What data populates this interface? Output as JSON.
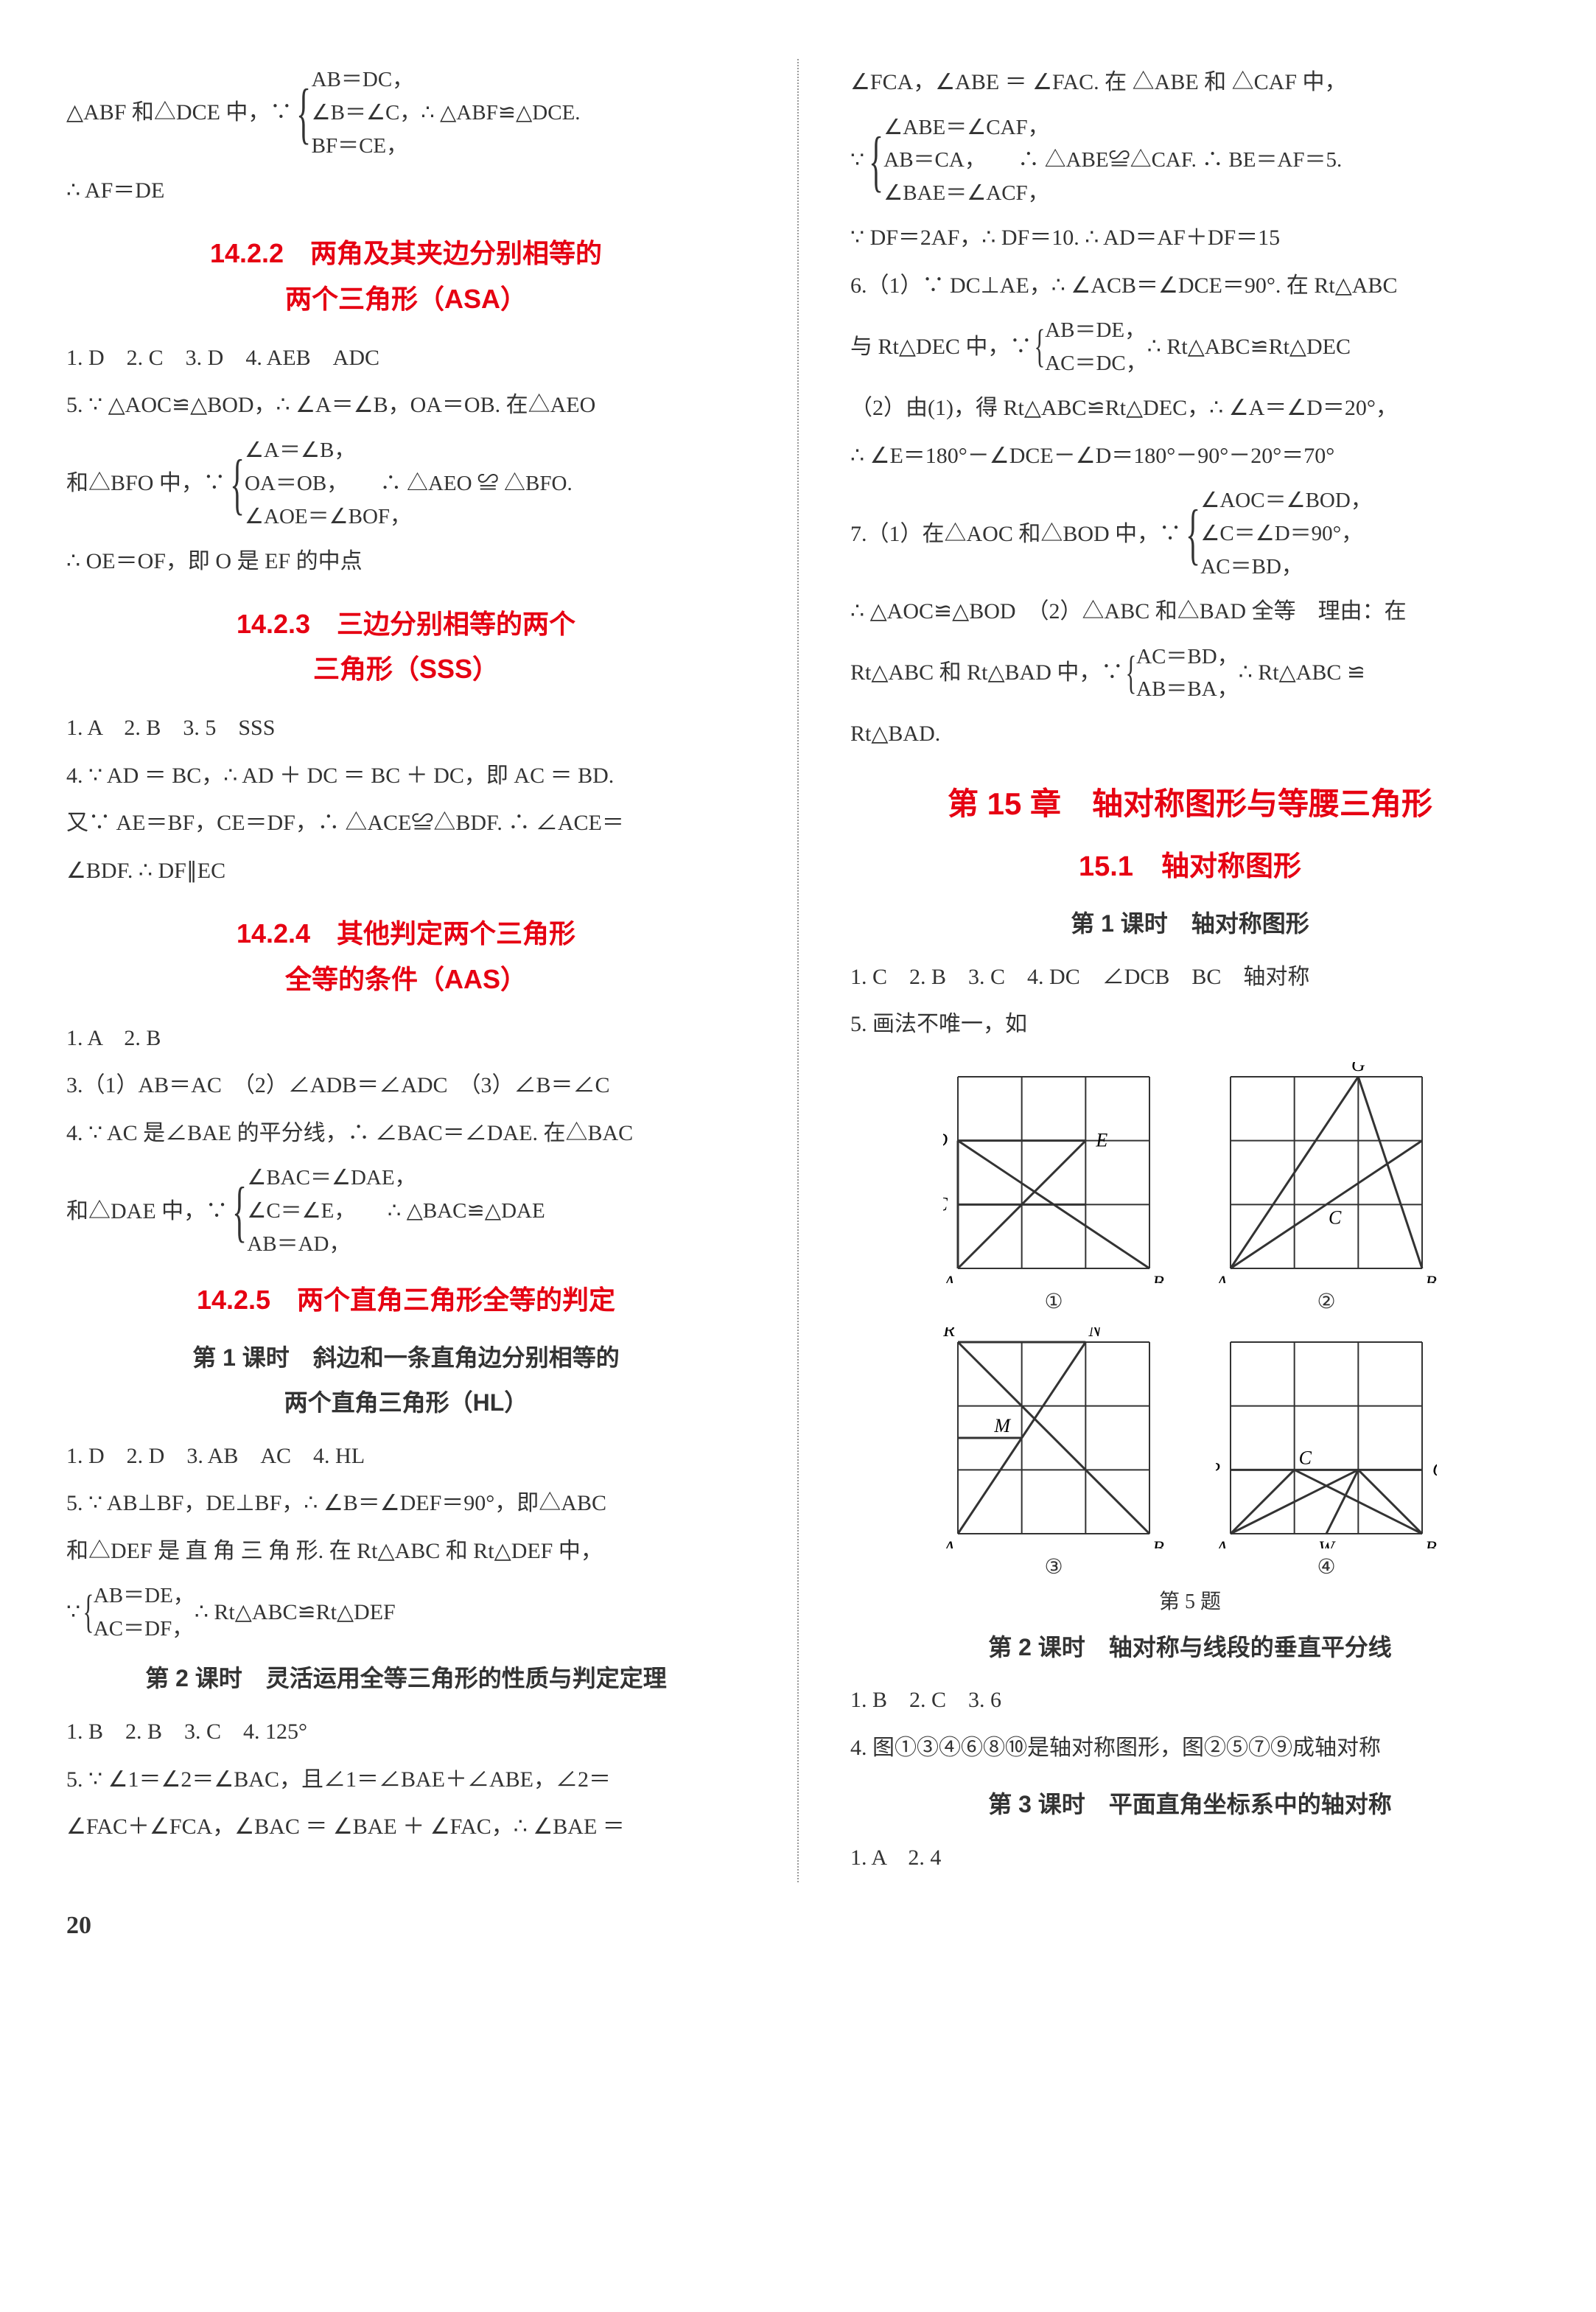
{
  "left": {
    "l1a": "△ABF 和△DCE 中，∵ ",
    "l1_brace": [
      "AB＝DC，",
      "∠B＝∠C，∴ △ABF≌△DCE.",
      "BF＝CE，"
    ],
    "l2": "∴ AF＝DE",
    "sec1422a": "14.2.2　两角及其夹边分别相等的",
    "sec1422b": "两个三角形（ASA）",
    "l3": "1. D　2. C　3. D　4. AEB　ADC",
    "l4": "5. ∵ △AOC≌△BOD，∴ ∠A＝∠B，OA＝OB. 在△AEO",
    "l5a": "和△BFO 中，∵ ",
    "l5_brace": [
      "∠A＝∠B，",
      "OA＝OB，　　∴ △AEO ≌ △BFO.",
      "∠AOE＝∠BOF，"
    ],
    "l6": "∴ OE＝OF，即 O 是 EF 的中点",
    "sec1423a": "14.2.3　三边分别相等的两个",
    "sec1423b": "三角形（SSS）",
    "l7": "1. A　2. B　3. 5　SSS",
    "l8": "4. ∵ AD ＝ BC，∴ AD ＋ DC ＝ BC ＋ DC，即 AC ＝ BD.",
    "l9": "又∵ AE＝BF，CE＝DF，∴ △ACE≌△BDF. ∴ ∠ACE＝",
    "l10": "∠BDF. ∴ DF∥EC",
    "sec1424a": "14.2.4　其他判定两个三角形",
    "sec1424b": "全等的条件（AAS）",
    "l11": "1. A　2. B",
    "l12": "3.（1）AB＝AC　（2）∠ADB＝∠ADC　（3）∠B＝∠C",
    "l13": "4. ∵ AC 是∠BAE 的平分线，∴ ∠BAC＝∠DAE. 在△BAC",
    "l14a": "和△DAE 中，∵ ",
    "l14_brace": [
      "∠BAC＝∠DAE，",
      "∠C＝∠E，　　∴ △BAC≌△DAE",
      "AB＝AD，"
    ],
    "sec1425": "14.2.5　两个直角三角形全等的判定",
    "lesson1a": "第 1 课时　斜边和一条直角边分别相等的",
    "lesson1b": "两个直角三角形（HL）",
    "l15": "1. D　2. D　3. AB　AC　4. HL",
    "l16": "5. ∵ AB⊥BF，DE⊥BF，∴ ∠B＝∠DEF＝90°，即△ABC",
    "l17": "和△DEF 是 直 角 三 角 形. 在 Rt△ABC 和 Rt△DEF 中，",
    "l18a": "∵ ",
    "l18_brace": [
      "AB＝DE，",
      "AC＝DF，"
    ],
    "l18b": "∴ Rt△ABC≌Rt△DEF",
    "lesson2": "第 2 课时　灵活运用全等三角形的性质与判定定理",
    "l19": "1. B　2. B　3. C　4. 125°",
    "l20": "5. ∵ ∠1＝∠2＝∠BAC，且∠1＝∠BAE＋∠ABE，∠2＝",
    "l21": "∠FAC＋∠FCA，∠BAC ＝ ∠BAE ＋ ∠FAC，∴ ∠BAE ＝"
  },
  "right": {
    "r1": "∠FCA，∠ABE ＝ ∠FAC. 在 △ABE 和 △CAF 中，",
    "r2a": "∵ ",
    "r2_brace": [
      "∠ABE＝∠CAF，",
      "AB＝CA，　　∴ △ABE≌△CAF. ∴ BE＝AF＝5.",
      "∠BAE＝∠ACF，"
    ],
    "r3": "∵ DF＝2AF，∴ DF＝10. ∴ AD＝AF＋DF＝15",
    "r4": "6.（1）∵ DC⊥AE，∴ ∠ACB＝∠DCE＝90°. 在 Rt△ABC",
    "r5a": "与 Rt△DEC 中，∵ ",
    "r5_brace": [
      "AB＝DE，",
      "AC＝DC，"
    ],
    "r5b": "∴ Rt△ABC≌Rt△DEC",
    "r6": "（2）由(1)，得 Rt△ABC≌Rt△DEC，∴ ∠A＝∠D＝20°，",
    "r7": "∴ ∠E＝180°－∠DCE－∠D＝180°－90°－20°＝70°",
    "r8a": "7.（1）在△AOC 和△BOD 中，∵ ",
    "r8_brace": [
      "∠AOC＝∠BOD，",
      "∠C＝∠D＝90°，",
      "AC＝BD，"
    ],
    "r9": "∴ △AOC≌△BOD　（2）△ABC 和△BAD 全等　理由：在",
    "r10a": "Rt△ABC 和 Rt△BAD 中，∵ ",
    "r10_brace": [
      "AC＝BD，",
      "AB＝BA，"
    ],
    "r10b": "∴ Rt△ABC ≌",
    "r11": "Rt△BAD.",
    "ch15": "第 15 章　轴对称图形与等腰三角形",
    "sec151": "15.1　轴对称图形",
    "lesson_r1": "第 1 课时　轴对称图形",
    "r12": "1. C　2. B　3. C　4. DC　∠DCB　BC　轴对称",
    "r13": "5. 画法不唯一，如",
    "fig1": "①",
    "fig2": "②",
    "fig3": "③",
    "fig4": "④",
    "figcap": "第 5 题",
    "lesson_r2": "第 2 课时　轴对称与线段的垂直平分线",
    "r14": "1. B　2. C　3. 6",
    "r15": "4. 图①③④⑥⑧⑩是轴对称图形，图②⑤⑦⑨成轴对称",
    "lesson_r3": "第 3 课时　平面直角坐标系中的轴对称",
    "r16": "1. A　2. 4"
  },
  "pagenum": "20",
  "fig": {
    "size": 260,
    "grid_stroke": "#333",
    "line_stroke": "#333",
    "label_font": 26,
    "labels1": {
      "A": "A",
      "B": "B",
      "C": "C",
      "D": "D",
      "E": "E"
    },
    "labels2": {
      "A": "A",
      "B": "B",
      "C": "C",
      "G": "G"
    },
    "labels3": {
      "A": "A",
      "B": "B",
      "M": "M",
      "N": "N",
      "R": "R"
    },
    "labels4": {
      "A": "A",
      "B": "B",
      "C": "C",
      "P": "P",
      "Q": "Q",
      "W": "W"
    }
  }
}
